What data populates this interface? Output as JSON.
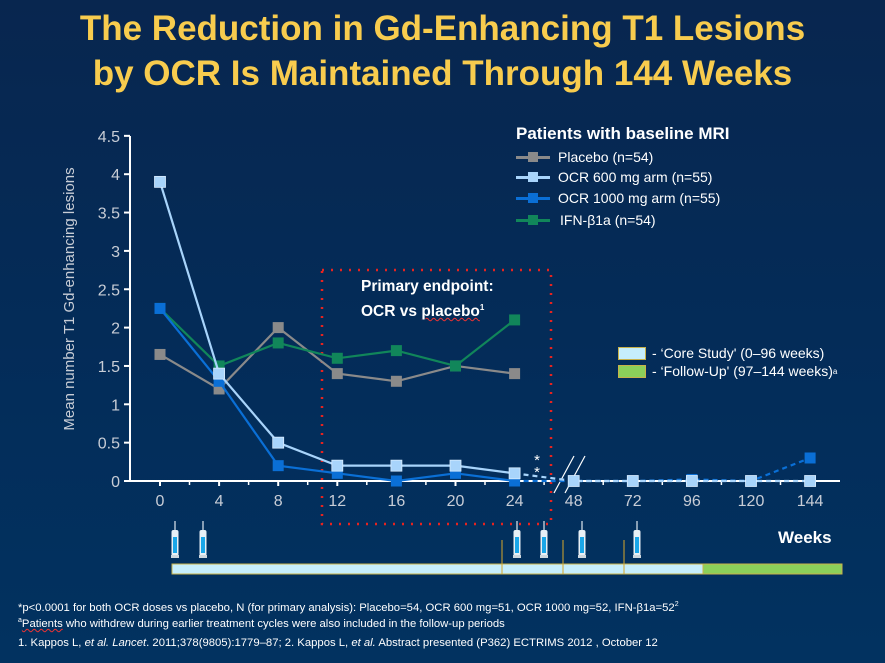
{
  "title": [
    "The Reduction in Gd-Enhancing T1 Lesions",
    "by OCR Is Maintained Through 144 Weeks"
  ],
  "legend": {
    "title": "Patients with baseline MRI",
    "items": [
      {
        "label": "Placebo (n=54)",
        "color": "#8a8a8a"
      },
      {
        "label": "OCR 600 mg arm (n=55)",
        "color": "#a8d4fb"
      },
      {
        "label": "OCR 1000 mg arm (n=55)",
        "color": "#0a6fd6"
      },
      {
        "label": "IFN-β1a (n=54)",
        "color": "#11865a"
      }
    ]
  },
  "primary_endpoint": {
    "line1": "Primary endpoint:",
    "line2a": "OCR vs ",
    "line2b": "placebo",
    "sup": "1"
  },
  "significance_marker": "**",
  "phases": [
    {
      "label": "- ‘Core Study' (0–96 weeks)",
      "color": "#c6eefc",
      "sup": ""
    },
    {
      "label": "- ‘Follow-Up' (97–144 weeks)",
      "color": "#8bd05a",
      "sup": "a"
    }
  ],
  "timeline_label": "Weeks",
  "dosing_weeks": [
    0,
    4,
    24,
    28,
    48,
    72
  ],
  "chart_data": {
    "type": "line",
    "title": "",
    "xlabel": "Weeks",
    "ylabel": "Mean number T1 Gd-enhancing lesions",
    "x": [
      "0",
      "4",
      "8",
      "12",
      "16",
      "20",
      "24",
      "48",
      "72",
      "96",
      "120",
      "144"
    ],
    "yticks": [
      "0",
      "0.5",
      "1",
      "1.5",
      "2",
      "2.5",
      "3",
      "3.5",
      "4",
      "4.5"
    ],
    "ylim": [
      0,
      4.5
    ],
    "axis_break_after": "24",
    "grid": false,
    "legend_position": "top-right",
    "series": [
      {
        "name": "Placebo (n=54)",
        "values": [
          1.65,
          1.2,
          2.0,
          1.4,
          1.3,
          1.5,
          1.4,
          null,
          null,
          null,
          null,
          null
        ]
      },
      {
        "name": "OCR 600 mg arm (n=55)",
        "values": [
          3.9,
          1.4,
          0.5,
          0.2,
          0.2,
          0.2,
          0.1,
          0,
          0,
          0,
          0,
          0
        ]
      },
      {
        "name": "OCR 1000 mg arm (n=55)",
        "values": [
          2.25,
          1.3,
          0.2,
          0.1,
          0,
          0.1,
          0,
          0,
          0,
          0.02,
          0,
          0.3
        ]
      },
      {
        "name": "IFN-β1a (n=54)",
        "values": [
          2.25,
          1.5,
          1.8,
          1.6,
          1.7,
          1.5,
          2.1,
          null,
          null,
          null,
          null,
          null
        ]
      }
    ]
  },
  "footnotes": {
    "line1": "*p<0.0001 for both OCR doses vs placebo, N (for primary analysis): Placebo=54, OCR 600 mg=51, OCR 1000 mg=52, IFN-β1a=52",
    "line1_sup": "2",
    "line2_sup": "a",
    "line2a": "Patients",
    "line2b": " who withdrew during earlier treatment cycles were also included in the follow-up periods",
    "line3a": "1. Kappos L, ",
    "line3b": "et al. Lancet",
    "line3c": ". 2011;378(9805):1779–87; 2. Kappos L, ",
    "line3d": "et al.",
    "line3e": "  Abstract presented (P362) ECTRIMS 2012 , October 12"
  }
}
